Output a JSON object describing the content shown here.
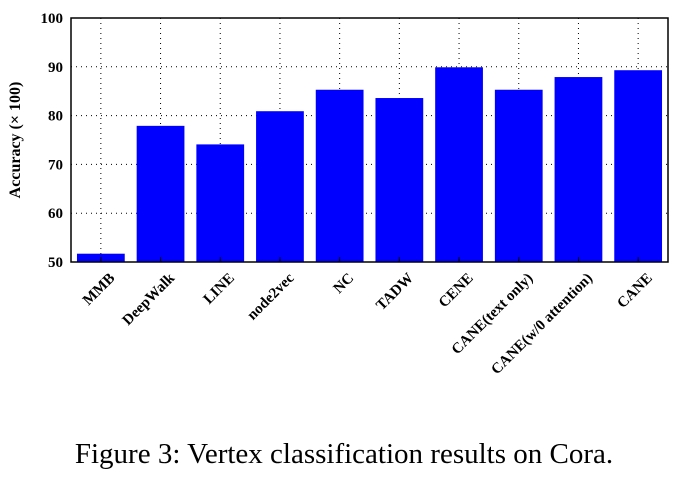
{
  "caption": "Figure 3: Vertex classification results on Cora.",
  "chart_data": {
    "type": "bar",
    "categories": [
      "MMB",
      "DeepWalk",
      "LINE",
      "node2vec",
      "NC",
      "TADW",
      "CENE",
      "CANE(text only)",
      "CANE(w/0 attention)",
      "CANE"
    ],
    "values": [
      51.7,
      77.9,
      74.1,
      80.9,
      85.3,
      83.6,
      89.9,
      85.3,
      87.9,
      89.3
    ],
    "ylabel": "Accuracy (× 100)",
    "xlabel": "",
    "ylim": [
      50,
      100
    ],
    "yticks": [
      50,
      60,
      70,
      80,
      90,
      100
    ],
    "grid": true,
    "bar_color": "#0000ff"
  }
}
